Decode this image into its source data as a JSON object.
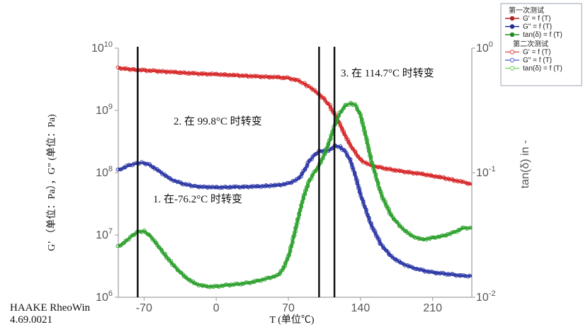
{
  "chart_data": {
    "type": "line",
    "xlabel": "T (单位℃)",
    "ylabel_left": "G’ （单位：Pa），G” (单位：Pa)",
    "ylabel_right": "tan(δ) in -",
    "xlim": [
      -95,
      248
    ],
    "x_ticks": [
      -70,
      0,
      70,
      140,
      210
    ],
    "ylim_left": [
      1000000,
      10000000000
    ],
    "y_ticks_left": [
      "10^6",
      "10^7",
      "10^8",
      "10^9",
      "10^10"
    ],
    "ylim_right": [
      0.01,
      1
    ],
    "y_ticks_right": [
      "10^-2",
      "10^-1",
      "10^0"
    ],
    "transitions": [
      {
        "x": -76.2,
        "label": "1.  在-76.2°C 时转变"
      },
      {
        "x": 99.8,
        "label": "2.  在 99.8°C 时转变"
      },
      {
        "x": 114.7,
        "label": "3.  在 114.7°C 时转变"
      }
    ],
    "series": [
      {
        "name": "G' = f (T)",
        "run": "第一次测试",
        "axis": "left",
        "color": "#d62728",
        "x": [
          -95,
          -80,
          -70,
          -60,
          -40,
          -20,
          0,
          20,
          40,
          60,
          70,
          80,
          85,
          90,
          95,
          100,
          105,
          110,
          115,
          120,
          125,
          130,
          140,
          150,
          160,
          180,
          200,
          220,
          240,
          248
        ],
        "y": [
          4800000000.0,
          4500000000.0,
          4400000000.0,
          4300000000.0,
          4100000000.0,
          3900000000.0,
          3800000000.0,
          3650000000.0,
          3500000000.0,
          3400000000.0,
          3300000000.0,
          3000000000.0,
          2700000000.0,
          2400000000.0,
          2100000000.0,
          1800000000.0,
          1500000000.0,
          1200000000.0,
          850000000.0,
          600000000.0,
          400000000.0,
          280000000.0,
          160000000.0,
          130000000.0,
          120000000.0,
          105000000.0,
          95000000.0,
          83000000.0,
          70000000.0,
          65000000.0
        ]
      },
      {
        "name": "G\" = f (T)",
        "run": "第一次测试",
        "axis": "left",
        "color": "#2a35a5",
        "x": [
          -95,
          -85,
          -78,
          -72,
          -65,
          -55,
          -45,
          -35,
          -20,
          0,
          20,
          40,
          60,
          70,
          80,
          85,
          90,
          95,
          100,
          105,
          110,
          115,
          120,
          125,
          130,
          135,
          140,
          150,
          160,
          170,
          180,
          190,
          200,
          210,
          220,
          230,
          240,
          248
        ],
        "y": [
          110000000.0,
          130000000.0,
          140000000.0,
          145000000.0,
          135000000.0,
          105000000.0,
          80000000.0,
          68000000.0,
          60000000.0,
          58000000.0,
          59000000.0,
          60000000.0,
          63000000.0,
          67000000.0,
          80000000.0,
          105000000.0,
          150000000.0,
          190000000.0,
          220000000.0,
          225000000.0,
          230000000.0,
          270000000.0,
          260000000.0,
          220000000.0,
          160000000.0,
          90000000.0,
          45000000.0,
          15000000.0,
          7000000.0,
          4500000.0,
          3500000.0,
          3000000.0,
          2700000.0,
          2500000.0,
          2400000.0,
          2300000.0,
          2200000.0,
          2200000.0
        ]
      },
      {
        "name": "tan(δ) = f (T)",
        "run": "第一次测试",
        "axis": "right",
        "color": "#2ca02c",
        "x": [
          -95,
          -88,
          -82,
          -76,
          -70,
          -64,
          -58,
          -50,
          -40,
          -30,
          -20,
          -10,
          0,
          10,
          20,
          30,
          40,
          50,
          60,
          65,
          70,
          75,
          80,
          85,
          90,
          95,
          100,
          105,
          110,
          115,
          120,
          125,
          130,
          135,
          140,
          145,
          150,
          160,
          170,
          180,
          190,
          200,
          210,
          220,
          230,
          240,
          248
        ],
        "y": [
          0.0255,
          0.028,
          0.031,
          0.0335,
          0.034,
          0.031,
          0.027,
          0.022,
          0.0175,
          0.0145,
          0.0128,
          0.0122,
          0.0122,
          0.0125,
          0.0127,
          0.013,
          0.0135,
          0.0142,
          0.015,
          0.017,
          0.021,
          0.03,
          0.045,
          0.065,
          0.085,
          0.1,
          0.115,
          0.14,
          0.18,
          0.24,
          0.3,
          0.345,
          0.36,
          0.35,
          0.29,
          0.2,
          0.13,
          0.067,
          0.045,
          0.036,
          0.031,
          0.029,
          0.03,
          0.031,
          0.033,
          0.036,
          0.036
        ]
      }
    ],
    "legend": {
      "position": "top-right",
      "groups": [
        {
          "title": "第一次测试",
          "style": "filled",
          "entries": [
            {
              "label": "G' = f (T)",
              "color": "#b22222"
            },
            {
              "label": "G\" = f (T)",
              "color": "#1f2f8f"
            },
            {
              "label": "tan(δ) = f (T)",
              "color": "#228b22"
            }
          ]
        },
        {
          "title": "第二次测试",
          "style": "hollow",
          "entries": [
            {
              "label": "G' = f (T)",
              "color": "#e35c5c"
            },
            {
              "label": "G\" = f (T)",
              "color": "#6a6fd0"
            },
            {
              "label": "tan(δ) = f (T)",
              "color": "#7cd66e"
            }
          ]
        }
      ]
    }
  },
  "software": {
    "name": "HAAKE RheoWin",
    "version": "4.69.0021"
  }
}
